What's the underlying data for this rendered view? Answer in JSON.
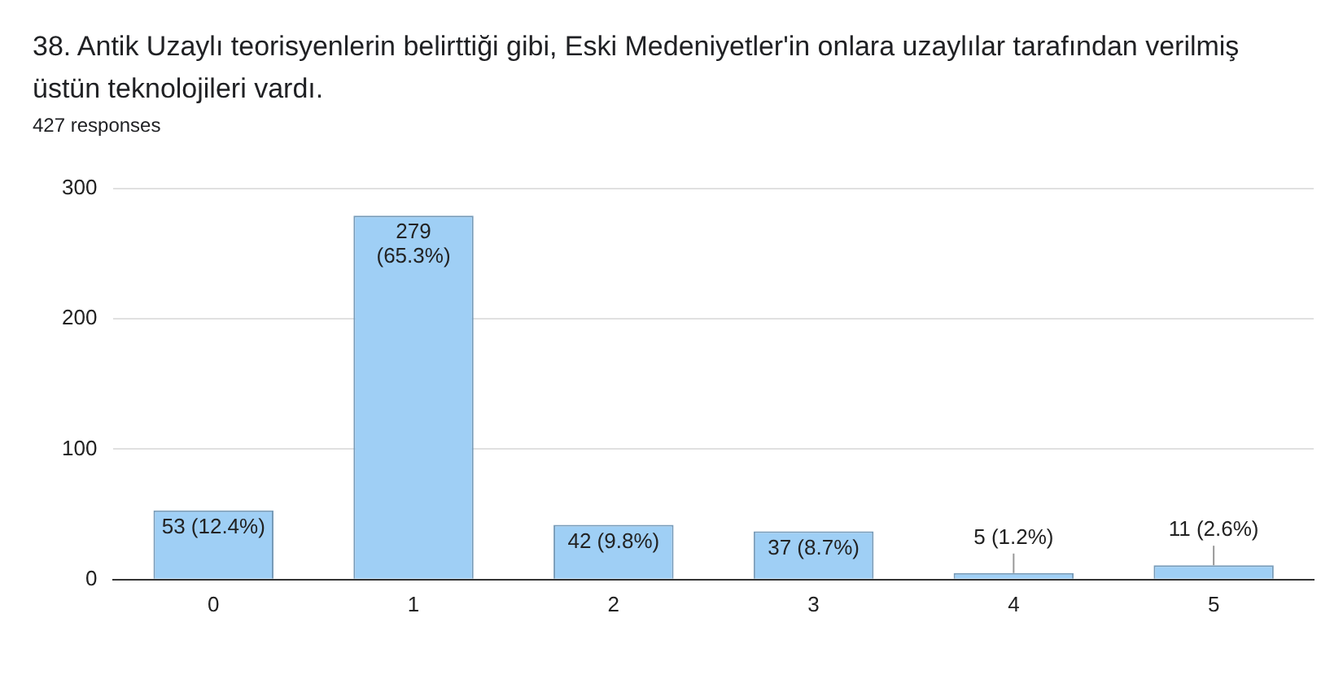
{
  "chart_data": {
    "type": "bar",
    "title": "38. Antik Uzaylı teorisyenlerin belirttiği gibi, Eski Medeniyetler'in onlara uzaylılar tarafından verilmiş üstün teknolojileri vardı.",
    "subtitle": "427 responses",
    "categories": [
      "0",
      "1",
      "2",
      "3",
      "4",
      "5"
    ],
    "values": [
      53,
      279,
      42,
      37,
      5,
      11
    ],
    "value_labels": [
      "53 (12.4%)",
      "279 (65.3%)",
      "42 (9.8%)",
      "37 (8.7%)",
      "5 (1.2%)",
      "11 (2.6%)"
    ],
    "color": "#9fcff5",
    "ylim": [
      0,
      300
    ],
    "yticks": [
      0,
      100,
      200,
      300
    ],
    "grid": "y",
    "legend": false
  }
}
